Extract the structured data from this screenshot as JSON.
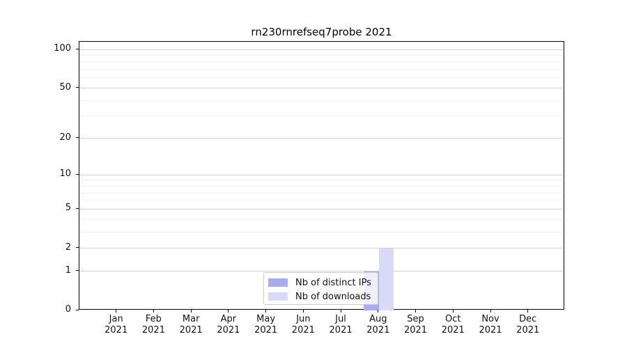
{
  "figure": {
    "background": "#ffffff"
  },
  "chart_data": {
    "type": "bar",
    "title": "rn230rnrefseq7probe 2021",
    "year": "2021",
    "months": [
      "Jan",
      "Feb",
      "Mar",
      "Apr",
      "May",
      "Jun",
      "Jul",
      "Aug",
      "Sep",
      "Oct",
      "Nov",
      "Dec"
    ],
    "categories": [
      "Jan 2021",
      "Feb 2021",
      "Mar 2021",
      "Apr 2021",
      "May 2021",
      "Jun 2021",
      "Jul 2021",
      "Aug 2021",
      "Sep 2021",
      "Oct 2021",
      "Nov 2021",
      "Dec 2021"
    ],
    "series": [
      {
        "name": "Nb of distinct IPs",
        "color": "#a8acee",
        "values": [
          0,
          0,
          0,
          0,
          0,
          0,
          0,
          1,
          0,
          0,
          0,
          0
        ]
      },
      {
        "name": "Nb of downloads",
        "color": "#d8daf8",
        "values": [
          0,
          0,
          0,
          0,
          0,
          0,
          0,
          2,
          0,
          0,
          0,
          0
        ]
      }
    ],
    "y_axis": {
      "scale": "log1p",
      "major_ticks": [
        0,
        1,
        2,
        5,
        10,
        20,
        50,
        100
      ],
      "minor_gridlines": [
        3,
        4,
        6,
        7,
        8,
        9,
        30,
        40,
        60,
        70,
        80,
        90
      ],
      "ylim": [
        0,
        115
      ]
    },
    "grid": "horizontal",
    "legend": {
      "position": "bottom-center",
      "entries": [
        "Nb of distinct IPs",
        "Nb of downloads"
      ]
    },
    "colors": {
      "grid_major": "#d2d2d2",
      "grid_minor": "#efefef",
      "axis": "#000000",
      "text": "#111111"
    }
  }
}
